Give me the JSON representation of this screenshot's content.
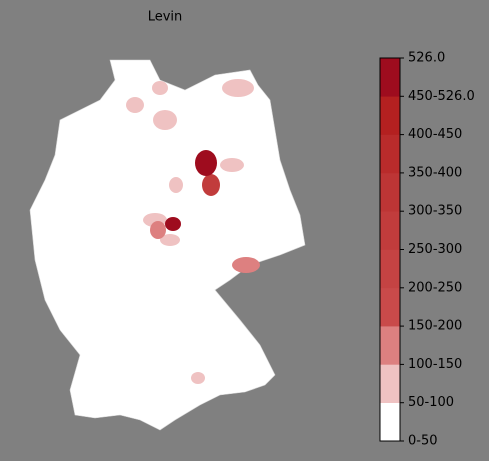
{
  "title": "Levin",
  "legend": {
    "labels": [
      "0-50",
      "50-100",
      "100-150",
      "150-200",
      "200-250",
      "250-300",
      "300-350",
      "350-400",
      "400-450",
      "450-526.0",
      "526.0"
    ],
    "colors": [
      "#ffffff",
      "#efc2c2",
      "#dd8080",
      "#c94a4a",
      "#c54343",
      "#c13c3c",
      "#bd3535",
      "#b92b2b",
      "#b42020",
      "#9e0c1e"
    ]
  }
}
